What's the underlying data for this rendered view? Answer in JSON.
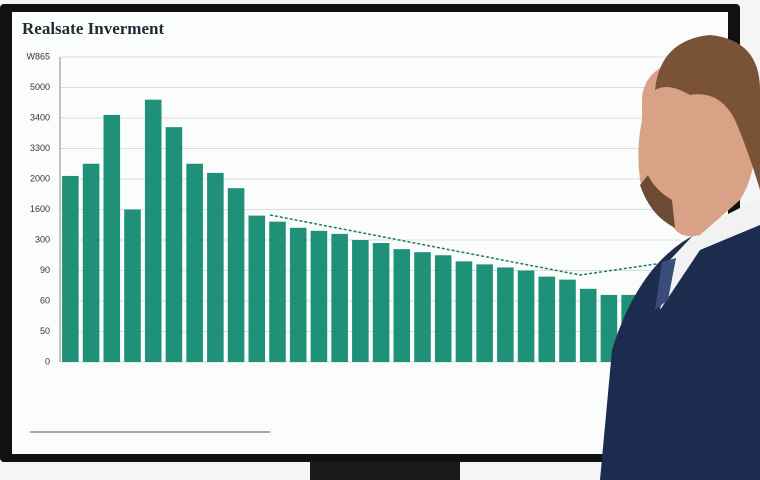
{
  "chart_data": {
    "type": "bar",
    "title": "Realsate Inverment",
    "categories": [
      null,
      null,
      null,
      null,
      null,
      null,
      null,
      null,
      null,
      null,
      null,
      null,
      null,
      null,
      null,
      null,
      null,
      null,
      null,
      null,
      null,
      null,
      null,
      null,
      null,
      null,
      null,
      null
    ],
    "values": [
      6.1,
      6.5,
      8.1,
      5.0,
      8.6,
      7.7,
      6.5,
      6.2,
      5.7,
      4.8,
      4.6,
      4.4,
      4.3,
      4.2,
      4.0,
      3.9,
      3.7,
      3.6,
      3.5,
      3.3,
      3.2,
      3.1,
      3.0,
      2.8,
      2.7,
      2.4,
      2.2,
      2.2
    ],
    "color": "#1e9178",
    "ylim": [
      0,
      10
    ],
    "yticks": [
      {
        "value": 0,
        "label": "0"
      },
      {
        "value": 1,
        "label": "50"
      },
      {
        "value": 2,
        "label": "60"
      },
      {
        "value": 3,
        "label": "90"
      },
      {
        "value": 4,
        "label": "300"
      },
      {
        "value": 5,
        "label": "1600"
      },
      {
        "value": 6,
        "label": "2000"
      },
      {
        "value": 7,
        "label": "3300"
      },
      {
        "value": 8,
        "label": "3400"
      },
      {
        "value": 9,
        "label": "5000"
      },
      {
        "value": 10,
        "label": "W865"
      }
    ],
    "grid": true
  }
}
